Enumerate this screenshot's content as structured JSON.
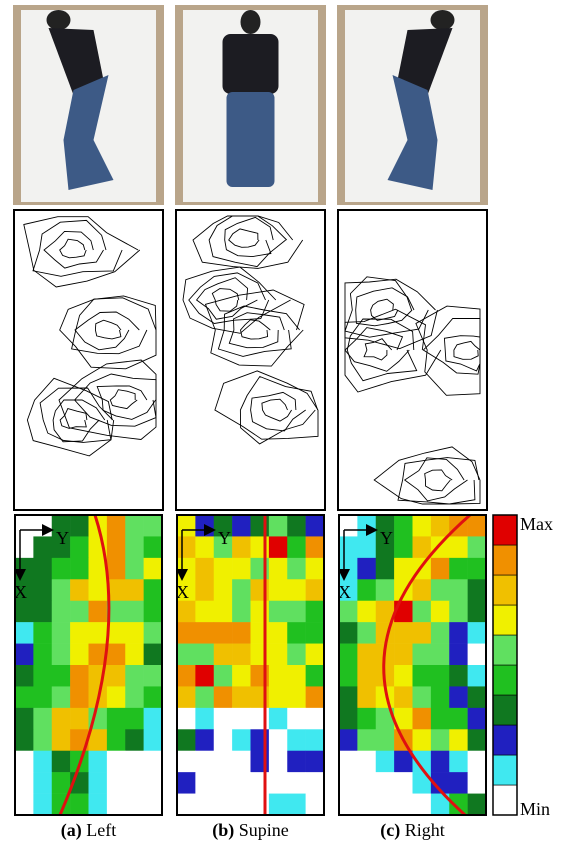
{
  "panels": [
    {
      "letter": "(a)",
      "label": "Left",
      "x_axis": "X",
      "y_axis": "Y"
    },
    {
      "letter": "(b)",
      "label": "Supine",
      "x_axis": "X",
      "y_axis": "Y"
    },
    {
      "letter": "(c)",
      "label": "Right",
      "x_axis": "X",
      "y_axis": "Y"
    }
  ],
  "colorbar": {
    "max": "Max",
    "min": "Min"
  }
}
